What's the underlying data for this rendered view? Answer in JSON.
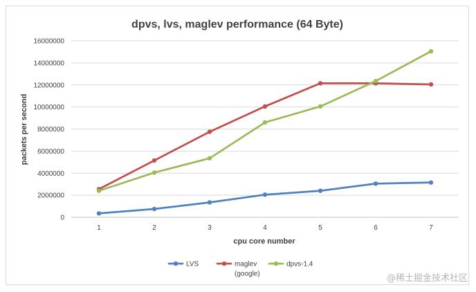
{
  "chart_data": {
    "type": "line",
    "title": "dpvs, lvs, maglev performance (64 Byte)",
    "xlabel": "cpu core number",
    "ylabel": "packets per second",
    "categories": [
      "1",
      "2",
      "3",
      "4",
      "5",
      "6",
      "7"
    ],
    "ylim": [
      0,
      16000000
    ],
    "yticks": [
      "0",
      "2000000",
      "4000000",
      "6000000",
      "8000000",
      "10000000",
      "12000000",
      "14000000",
      "16000000"
    ],
    "ytick_values": [
      0,
      2000000,
      4000000,
      6000000,
      8000000,
      10000000,
      12000000,
      14000000,
      16000000
    ],
    "grid": true,
    "legend_position": "bottom",
    "series": [
      {
        "name": "LVS",
        "name_lines": [
          "LVS"
        ],
        "color": "#4f81bd",
        "values": [
          350000,
          750000,
          1350000,
          2050000,
          2400000,
          3050000,
          3150000
        ]
      },
      {
        "name": "maglev (google)",
        "name_lines": [
          "maglev",
          "(google)"
        ],
        "color": "#c0504d",
        "values": [
          2550000,
          5150000,
          7750000,
          10050000,
          12150000,
          12150000,
          12050000
        ]
      },
      {
        "name": "dpvs-1.4",
        "name_lines": [
          "dpvs-1.4"
        ],
        "color": "#9bbb59",
        "values": [
          2400000,
          4050000,
          5350000,
          8600000,
          10050000,
          12350000,
          15050000
        ]
      }
    ]
  },
  "watermark": "@稀土掘金技术社区"
}
